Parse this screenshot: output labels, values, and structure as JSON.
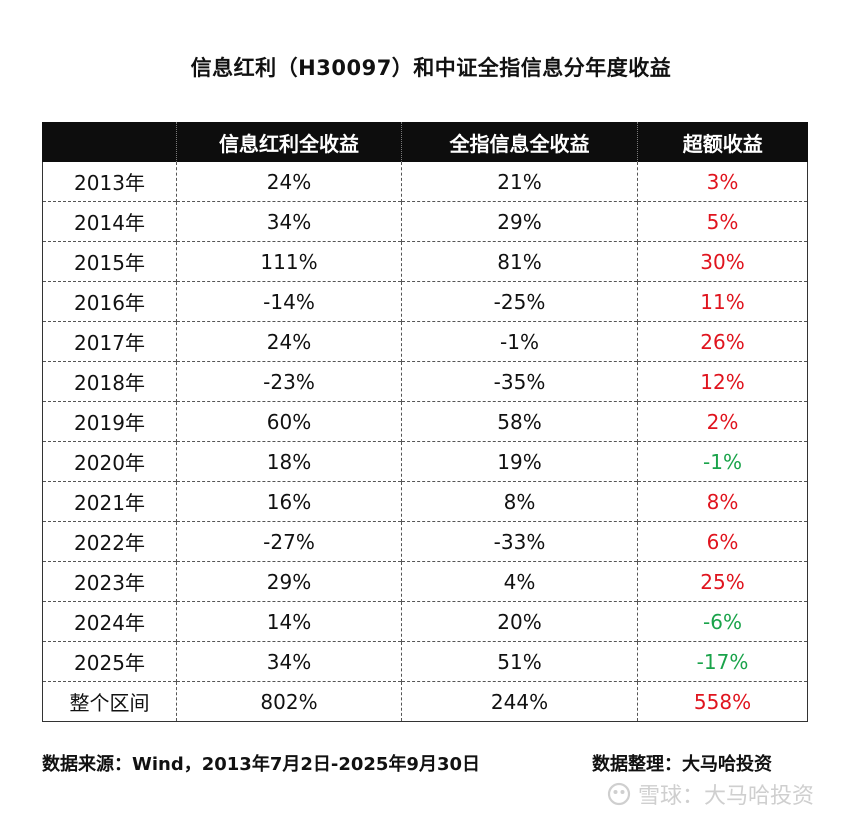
{
  "title": "信息红利（H30097）和中证全指信息分年度收益",
  "colors": {
    "header_bg": "#0d0d0d",
    "header_text": "#ffffff",
    "positive_excess": "#e0141e",
    "negative_excess": "#1aa34a"
  },
  "chart_data": {
    "type": "table",
    "columns": [
      "",
      "信息红利全收益",
      "全指信息全收益",
      "超额收益"
    ],
    "rows": [
      {
        "label": "2013年",
        "dividend": "24%",
        "index": "21%",
        "excess": "3%",
        "excess_value": 3
      },
      {
        "label": "2014年",
        "dividend": "34%",
        "index": "29%",
        "excess": "5%",
        "excess_value": 5
      },
      {
        "label": "2015年",
        "dividend": "111%",
        "index": "81%",
        "excess": "30%",
        "excess_value": 30
      },
      {
        "label": "2016年",
        "dividend": "-14%",
        "index": "-25%",
        "excess": "11%",
        "excess_value": 11
      },
      {
        "label": "2017年",
        "dividend": "24%",
        "index": "-1%",
        "excess": "26%",
        "excess_value": 26
      },
      {
        "label": "2018年",
        "dividend": "-23%",
        "index": "-35%",
        "excess": "12%",
        "excess_value": 12
      },
      {
        "label": "2019年",
        "dividend": "60%",
        "index": "58%",
        "excess": "2%",
        "excess_value": 2
      },
      {
        "label": "2020年",
        "dividend": "18%",
        "index": "19%",
        "excess": "-1%",
        "excess_value": -1
      },
      {
        "label": "2021年",
        "dividend": "16%",
        "index": "8%",
        "excess": "8%",
        "excess_value": 8
      },
      {
        "label": "2022年",
        "dividend": "-27%",
        "index": "-33%",
        "excess": "6%",
        "excess_value": 6
      },
      {
        "label": "2023年",
        "dividend": "29%",
        "index": "4%",
        "excess": "25%",
        "excess_value": 25
      },
      {
        "label": "2024年",
        "dividend": "14%",
        "index": "20%",
        "excess": "-6%",
        "excess_value": -6
      },
      {
        "label": "2025年",
        "dividend": "34%",
        "index": "51%",
        "excess": "-17%",
        "excess_value": -17
      },
      {
        "label": "整个区间",
        "dividend": "802%",
        "index": "244%",
        "excess": "558%",
        "excess_value": 558
      }
    ]
  },
  "footer": {
    "source": "数据来源：Wind，2013年7月2日-2025年9月30日",
    "compiled_by": "数据整理：大马哈投资"
  },
  "watermark": {
    "text": "雪球：大马哈投资",
    "icon": "snowball-logo-icon"
  }
}
